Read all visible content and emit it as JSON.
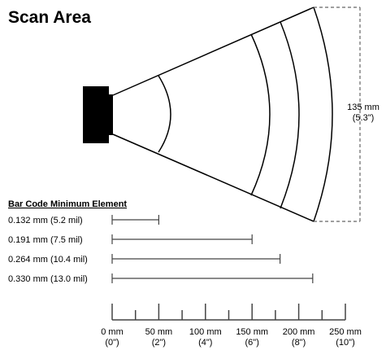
{
  "title": "Scan Area",
  "dimension": {
    "value": "135 mm",
    "sub": "(5.3\")"
  },
  "bar_code": {
    "heading": "Bar Code Minimum Element",
    "rows": [
      {
        "label": "0.132 mm (5.2 mil)",
        "reach_mm": 50
      },
      {
        "label": "0.191 mm (7.5 mil)",
        "reach_mm": 150
      },
      {
        "label": "0.264 mm (10.4 mil)",
        "reach_mm": 180
      },
      {
        "label": "0.330 mm (13.0 mil)",
        "reach_mm": 215
      }
    ]
  },
  "scale": {
    "ticks": [
      {
        "mm": "0 mm",
        "in": "(0\")"
      },
      {
        "mm": "50 mm",
        "in": "(2\")"
      },
      {
        "mm": "100 mm",
        "in": "(4\")"
      },
      {
        "mm": "150 mm",
        "in": "(6\")"
      },
      {
        "mm": "200 mm",
        "in": "(8\")"
      },
      {
        "mm": "250 mm",
        "in": "(10\")"
      }
    ]
  }
}
